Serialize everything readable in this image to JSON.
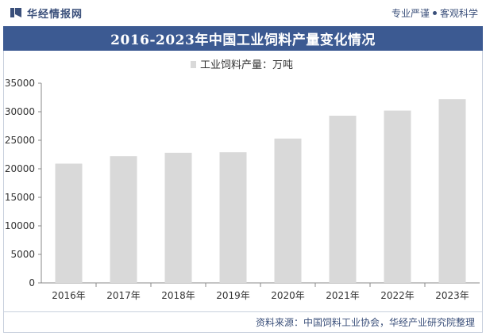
{
  "header": {
    "brand": "华经情报网",
    "slogan_left": "专业严谨",
    "slogan_right": "客观科学"
  },
  "title": "2016-2023年中国工业饲料产量变化情况",
  "source": "资料来源：中国饲料工业协会，华经产业研究院整理",
  "colors": {
    "bar": "#d9d9d9",
    "title_bg": "#3c5a92",
    "brand": "#3a4f7a"
  },
  "chart_data": {
    "type": "bar",
    "categories": [
      "2016年",
      "2017年",
      "2018年",
      "2019年",
      "2020年",
      "2021年",
      "2022年",
      "2023年"
    ],
    "series": [
      {
        "name": "工业饲料产量：万吨",
        "values": [
          20900,
          22200,
          22800,
          22900,
          25300,
          29300,
          30200,
          32200
        ]
      }
    ],
    "ylim": [
      0,
      35000
    ],
    "yticks": [
      0,
      5000,
      10000,
      15000,
      20000,
      25000,
      30000,
      35000
    ],
    "legend_position": "top-center",
    "grid": false
  }
}
